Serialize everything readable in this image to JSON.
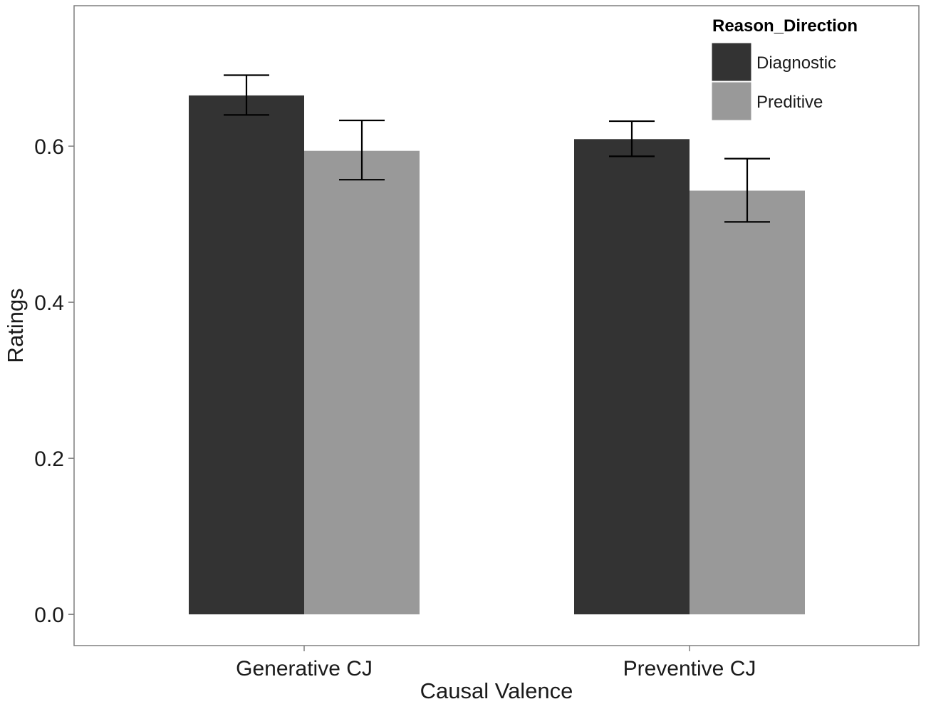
{
  "chart_data": {
    "type": "bar",
    "title": "",
    "xlabel": "Causal Valence",
    "ylabel": "Ratings",
    "categories": [
      "Generative CJ",
      "Preventive CJ"
    ],
    "ylim": [
      -0.04,
      0.78
    ],
    "yticks": [
      "0.0",
      "0.2",
      "0.4",
      "0.6"
    ],
    "ytick_values": [
      0.0,
      0.2,
      0.4,
      0.6
    ],
    "grid": false,
    "legend": {
      "title": "Reason_Direction",
      "position": "top-right"
    },
    "series": [
      {
        "name": "Diagnostic",
        "color": "#333333",
        "values": [
          0.665,
          0.609
        ],
        "error_low": [
          0.64,
          0.587
        ],
        "error_high": [
          0.691,
          0.632
        ]
      },
      {
        "name": "Preditive",
        "color": "#999999",
        "values": [
          0.594,
          0.543
        ],
        "error_low": [
          0.557,
          0.503
        ],
        "error_high": [
          0.633,
          0.584
        ]
      }
    ]
  }
}
